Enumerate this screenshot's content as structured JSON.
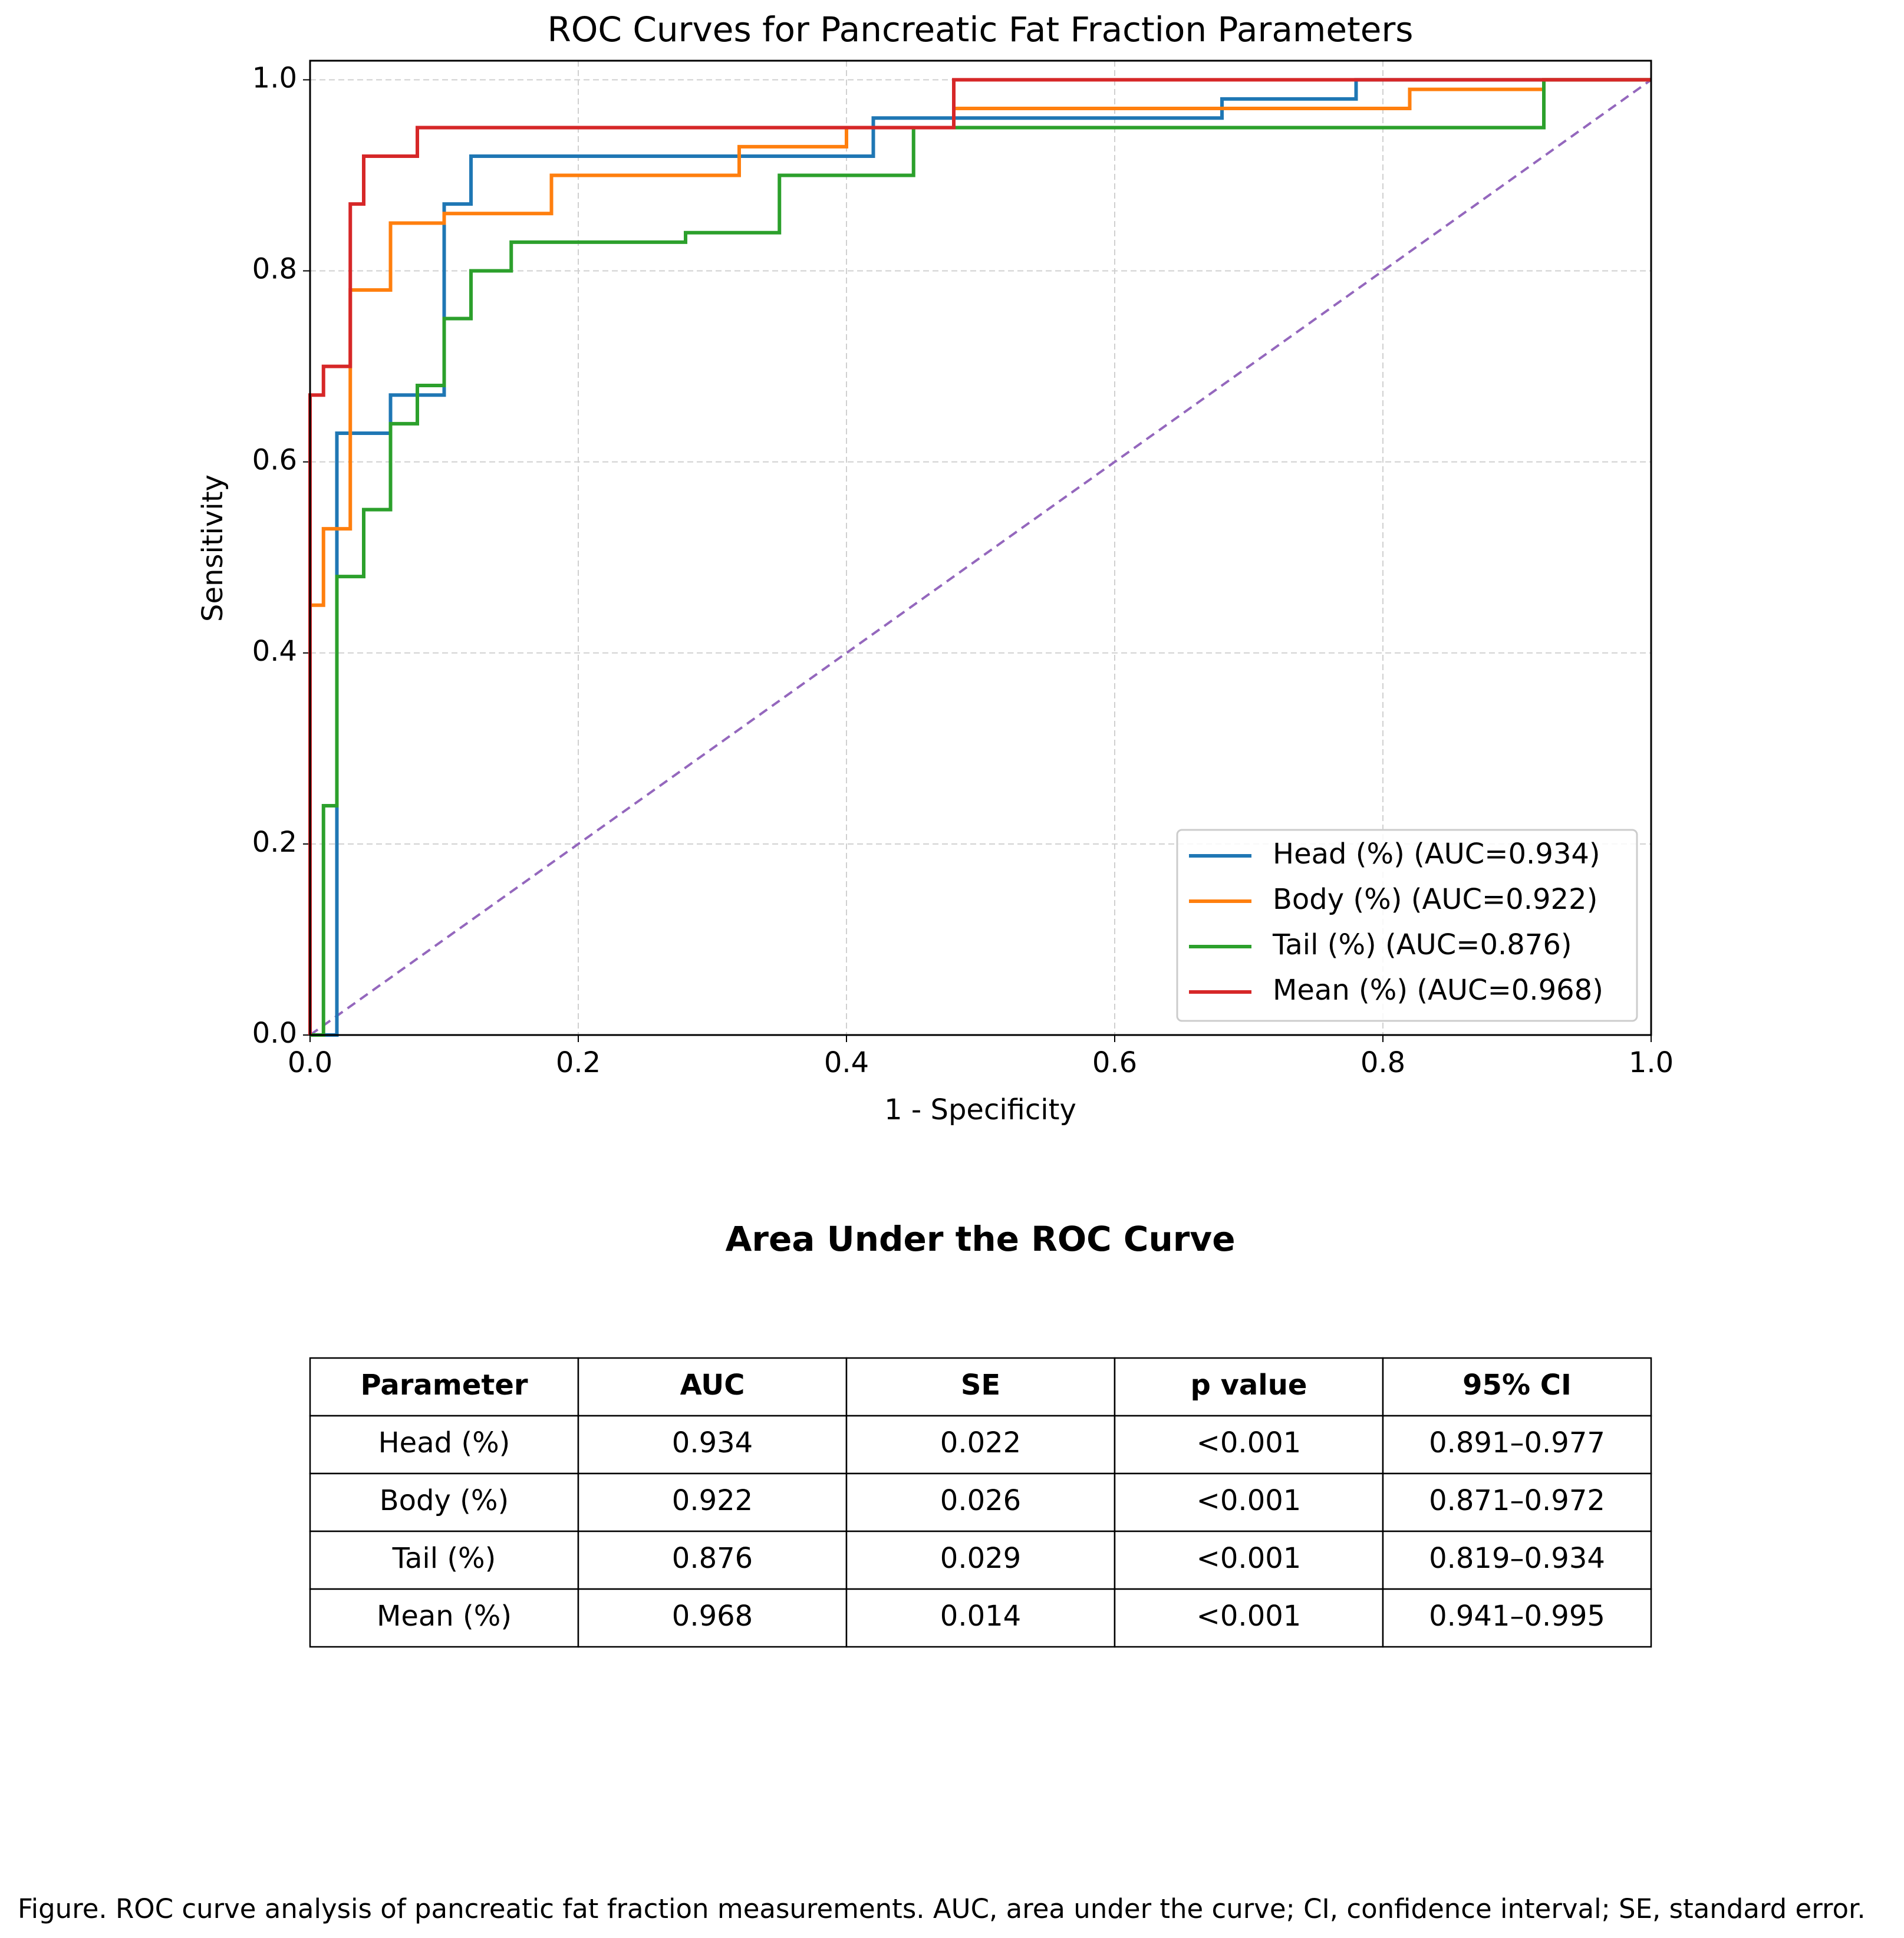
{
  "chart_data": {
    "type": "line",
    "title": "ROC Curves for Pancreatic Fat Fraction Parameters",
    "x_label": "1 - Specificity",
    "y_label": "Sensitivity",
    "xlim": [
      0,
      1
    ],
    "ylim": [
      0,
      1.02
    ],
    "xticks": [
      {
        "value": 0,
        "label": "0.0"
      },
      0.2,
      0.4,
      0.6,
      0.8,
      {
        "value": 1,
        "label": "1.0"
      }
    ],
    "yticks": [
      {
        "value": 0,
        "label": "0.0"
      },
      0.2,
      0.4,
      0.6,
      0.8,
      {
        "value": 1,
        "label": "1.0"
      }
    ],
    "grid": true,
    "legend": "lower right",
    "series": [
      {
        "name": "Head (%) (AUC=0.934)",
        "color": "#1f77b4",
        "x": [
          0,
          0.02,
          0.02,
          0.06,
          0.06,
          0.1,
          0.1,
          0.12,
          0.12,
          0.42,
          0.42,
          0.68,
          0.68,
          0.78,
          0.78,
          1.0
        ],
        "values": [
          0,
          0,
          0.63,
          0.63,
          0.67,
          0.67,
          0.87,
          0.87,
          0.92,
          0.92,
          0.96,
          0.96,
          0.98,
          0.98,
          1.0,
          1.0
        ]
      },
      {
        "name": "Body (%) (AUC=0.922)",
        "color": "#ff7f0e",
        "x": [
          0,
          0,
          0.01,
          0.01,
          0.03,
          0.03,
          0.06,
          0.06,
          0.1,
          0.1,
          0.18,
          0.18,
          0.32,
          0.32,
          0.4,
          0.4,
          0.48,
          0.48,
          0.82,
          0.82,
          0.92,
          0.92,
          1.0
        ],
        "values": [
          0,
          0.45,
          0.45,
          0.53,
          0.53,
          0.78,
          0.78,
          0.85,
          0.85,
          0.86,
          0.86,
          0.9,
          0.9,
          0.93,
          0.93,
          0.95,
          0.95,
          0.97,
          0.97,
          0.99,
          0.99,
          1.0,
          1.0
        ]
      },
      {
        "name": "Tail (%) (AUC=0.876)",
        "color": "#2ca02c",
        "x": [
          0,
          0.01,
          0.01,
          0.02,
          0.02,
          0.04,
          0.04,
          0.06,
          0.06,
          0.08,
          0.08,
          0.1,
          0.1,
          0.12,
          0.12,
          0.15,
          0.15,
          0.28,
          0.28,
          0.35,
          0.35,
          0.45,
          0.45,
          0.92,
          0.92,
          1.0
        ],
        "values": [
          0,
          0,
          0.24,
          0.24,
          0.48,
          0.48,
          0.55,
          0.55,
          0.64,
          0.64,
          0.68,
          0.68,
          0.75,
          0.75,
          0.8,
          0.8,
          0.83,
          0.83,
          0.84,
          0.84,
          0.9,
          0.9,
          0.95,
          0.95,
          1.0,
          1.0
        ]
      },
      {
        "name": "Mean (%) (AUC=0.968)",
        "color": "#d62728",
        "x": [
          0,
          0,
          0.01,
          0.01,
          0.03,
          0.03,
          0.04,
          0.04,
          0.08,
          0.08,
          0.48,
          0.48,
          1.0
        ],
        "values": [
          0,
          0.67,
          0.67,
          0.7,
          0.7,
          0.87,
          0.87,
          0.92,
          0.92,
          0.95,
          0.95,
          1.0,
          1.0
        ]
      }
    ],
    "reference_line": {
      "color": "#9467bd",
      "x": [
        0,
        1
      ],
      "values": [
        0,
        1
      ]
    }
  },
  "table": {
    "title": "Area Under the ROC Curve",
    "header": [
      "Parameter",
      "AUC",
      "SE",
      "p value",
      "95% CI"
    ],
    "rows": [
      [
        "Head (%)",
        "0.934",
        "0.022",
        "<0.001",
        "0.891–0.977"
      ],
      [
        "Body (%)",
        "0.922",
        "0.026",
        "<0.001",
        "0.871–0.972"
      ],
      [
        "Tail (%)",
        "0.876",
        "0.029",
        "<0.001",
        "0.819–0.934"
      ],
      [
        "Mean (%)",
        "0.968",
        "0.014",
        "<0.001",
        "0.941–0.995"
      ]
    ]
  },
  "caption": "Figure. ROC curve analysis of pancreatic fat fraction measurements. AUC, area under the curve; CI, confidence interval; SE, standard error."
}
